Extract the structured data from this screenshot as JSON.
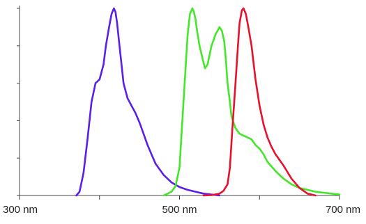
{
  "chart_data": {
    "type": "line",
    "title": "",
    "xlabel": "",
    "ylabel": "",
    "xlim": [
      300,
      700
    ],
    "ylim": [
      0,
      1
    ],
    "x_ticks": [
      300,
      400,
      500,
      600,
      700
    ],
    "x_tick_labels": [
      {
        "value": 300,
        "text": "300 nm"
      },
      {
        "value": 500,
        "text": "500 nm"
      },
      {
        "value": 700,
        "text": "700 nm"
      }
    ],
    "y_ticks": [
      0,
      0.2,
      0.4,
      0.6,
      0.8,
      1.0
    ],
    "grid": false,
    "legend": "none",
    "series": [
      {
        "color": "#5a1fe8",
        "x": [
          371,
          375,
          380,
          385,
          390,
          395,
          400,
          405,
          408,
          412,
          415,
          418,
          420,
          422,
          425,
          430,
          435,
          440,
          445,
          450,
          455,
          460,
          465,
          470,
          480,
          490,
          500,
          510,
          520,
          530,
          540,
          550
        ],
        "y": [
          0,
          0.02,
          0.12,
          0.3,
          0.5,
          0.6,
          0.62,
          0.7,
          0.8,
          0.9,
          0.97,
          1.0,
          0.98,
          0.92,
          0.8,
          0.6,
          0.52,
          0.48,
          0.44,
          0.39,
          0.33,
          0.27,
          0.22,
          0.17,
          0.11,
          0.07,
          0.045,
          0.03,
          0.02,
          0.01,
          0.005,
          0
        ]
      },
      {
        "color": "#44e62a",
        "x": [
          480,
          485,
          490,
          495,
          500,
          505,
          510,
          513,
          516,
          518,
          520,
          522,
          525,
          530,
          532,
          535,
          538,
          540,
          545,
          550,
          553,
          556,
          558,
          560,
          563,
          565,
          570,
          575,
          580,
          585,
          590,
          595,
          600,
          605,
          610,
          620,
          630,
          640,
          650,
          660,
          670,
          680,
          690,
          700
        ],
        "y": [
          0,
          0.01,
          0.02,
          0.05,
          0.15,
          0.5,
          0.85,
          0.97,
          1.0,
          0.98,
          0.94,
          0.88,
          0.8,
          0.71,
          0.68,
          0.7,
          0.76,
          0.8,
          0.86,
          0.9,
          0.88,
          0.82,
          0.72,
          0.6,
          0.5,
          0.42,
          0.36,
          0.33,
          0.32,
          0.31,
          0.3,
          0.27,
          0.25,
          0.22,
          0.18,
          0.13,
          0.09,
          0.06,
          0.04,
          0.03,
          0.02,
          0.015,
          0.01,
          0.005
        ]
      },
      {
        "color": "#e8102c",
        "x": [
          530,
          540,
          550,
          555,
          560,
          563,
          566,
          570,
          573,
          575,
          578,
          580,
          583,
          586,
          590,
          595,
          600,
          605,
          610,
          615,
          620,
          630,
          640,
          650,
          660,
          670
        ],
        "y": [
          0,
          0.002,
          0.01,
          0.025,
          0.06,
          0.15,
          0.35,
          0.6,
          0.8,
          0.92,
          0.99,
          1.0,
          0.97,
          0.9,
          0.8,
          0.62,
          0.48,
          0.38,
          0.31,
          0.26,
          0.22,
          0.16,
          0.09,
          0.04,
          0.01,
          0
        ]
      }
    ]
  }
}
